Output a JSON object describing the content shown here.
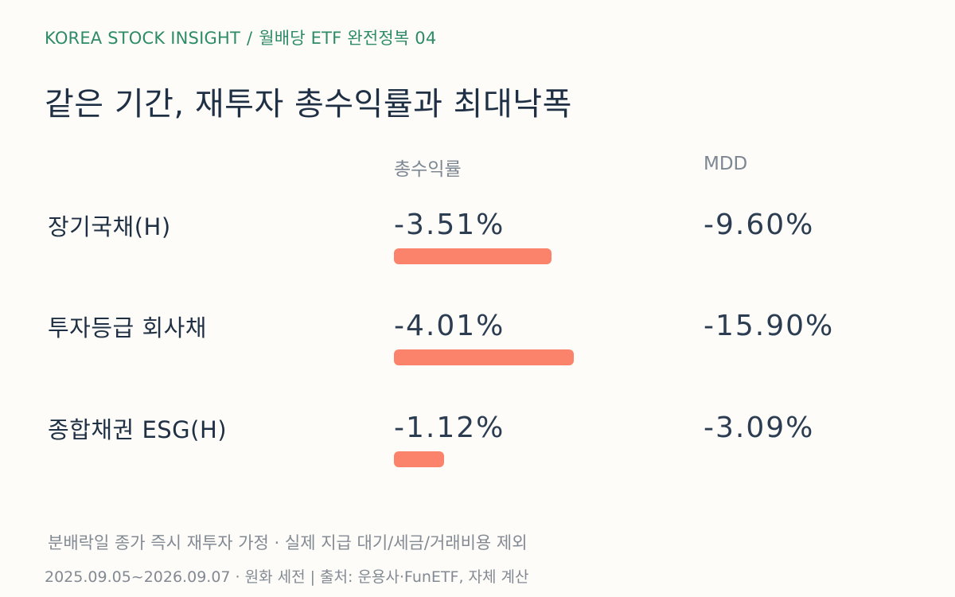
{
  "header": {
    "kicker_brand": "KOREA STOCK INSIGHT",
    "kicker_sep": "/",
    "kicker_series": "월배당 ETF 완전정복 04",
    "title": "같은 기간, 재투자 총수익률과 최대낙폭"
  },
  "columns": {
    "total_return": "총수익률",
    "mdd": "MDD"
  },
  "chart_data": {
    "type": "table",
    "bar_color": "#fc836b",
    "rows": [
      {
        "name": "장기국채(H)",
        "total_return_label": "-3.51%",
        "total_return": -3.51,
        "mdd_label": "-9.60%",
        "mdd": -9.6
      },
      {
        "name": "투자등급 회사채",
        "total_return_label": "-4.01%",
        "total_return": -4.01,
        "mdd_label": "-15.90%",
        "mdd": -15.9
      },
      {
        "name": "종합채권 ESG(H)",
        "total_return_label": "-1.12%",
        "total_return": -1.12,
        "mdd_label": "-3.09%",
        "mdd": -3.09
      }
    ]
  },
  "footer": {
    "note": "분배락일 종가 즉시 재투자 가정 · 실제 지급 대기/세금/거래비용 제외",
    "source": "2025.09.05~2026.09.07 · 원화 세전 | 출처: 운용사·FunETF, 자체 계산"
  },
  "colors": {
    "background": "#fdfcf8",
    "accent": "#2e8b6a",
    "text": "#1f2f44",
    "muted": "#838a93",
    "bar": "#fc836b"
  }
}
